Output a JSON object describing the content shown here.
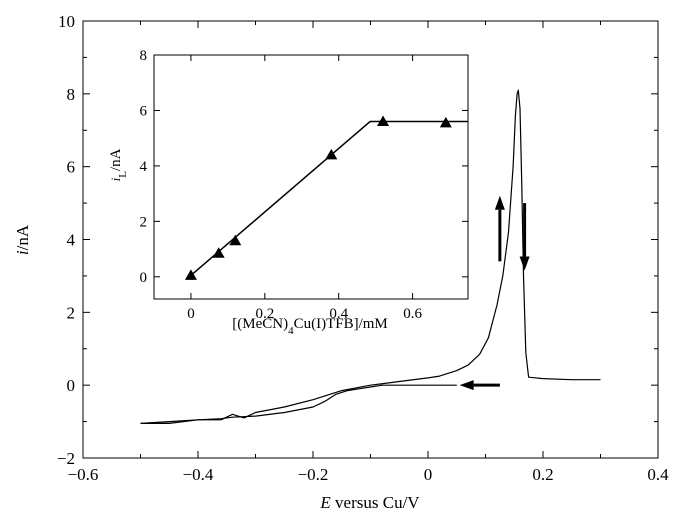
{
  "chart_data": [
    {
      "type": "line",
      "title": "",
      "xlabel": {
        "italic": "E",
        "rest": " versus Cu/V"
      },
      "ylabel": {
        "italic": "i",
        "rest": "/nA"
      },
      "xlim": [
        -0.6,
        0.4
      ],
      "ylim": [
        -2,
        10
      ],
      "x_ticks": [
        -0.6,
        -0.4,
        -0.2,
        0,
        0.2,
        0.4
      ],
      "x_tick_labels": [
        "−0.6",
        "−0.4",
        "−0.2",
        "0",
        "0.2",
        "0.4"
      ],
      "y_ticks": [
        -2,
        0,
        2,
        4,
        6,
        8,
        10
      ],
      "y_tick_labels": [
        "−2",
        "0",
        "2",
        "4",
        "6",
        "8",
        "10"
      ],
      "grid": false,
      "series": [
        {
          "x": [
            0.3,
            0.25,
            0.2,
            0.175,
            0.17,
            0.166,
            0.163,
            0.16,
            0.157,
            0.155,
            0.152,
            0.148,
            0.14,
            0.13,
            0.12,
            0.105,
            0.09,
            0.07,
            0.05,
            0.02,
            0.0,
            -0.05,
            -0.1,
            -0.15,
            -0.2,
            -0.25,
            -0.3,
            -0.32,
            -0.34,
            -0.36,
            -0.4,
            -0.45,
            -0.5
          ],
          "y": [
            0.15,
            0.15,
            0.18,
            0.22,
            0.9,
            3.0,
            5.6,
            7.6,
            8.1,
            8.0,
            7.4,
            6.0,
            4.2,
            3.0,
            2.2,
            1.3,
            0.85,
            0.55,
            0.4,
            0.25,
            0.2,
            0.1,
            0.0,
            -0.15,
            -0.4,
            -0.6,
            -0.75,
            -0.9,
            -0.8,
            -0.95,
            -0.95,
            -1.05,
            -1.05
          ]
        },
        {
          "x": [
            -0.5,
            -0.45,
            -0.4,
            -0.36,
            -0.34,
            -0.3,
            -0.25,
            -0.2,
            -0.18,
            -0.16,
            -0.14,
            -0.12,
            -0.1,
            -0.08,
            -0.05,
            0.0,
            0.05
          ],
          "y": [
            -1.05,
            -1.0,
            -0.95,
            -0.92,
            -0.88,
            -0.85,
            -0.75,
            -0.6,
            -0.45,
            -0.25,
            -0.15,
            -0.1,
            -0.05,
            0.0,
            0.0,
            0.0,
            0.0
          ]
        }
      ],
      "arrows": [
        {
          "direction": "up",
          "x": 0.125,
          "y_from": 3.4,
          "y_to": 5.2
        },
        {
          "direction": "down",
          "x": 0.168,
          "y_from": 5.0,
          "y_to": 3.15
        },
        {
          "direction": "left",
          "y": 0.0,
          "x_from": 0.125,
          "x_to": 0.055
        }
      ]
    },
    {
      "type": "scatter",
      "xlabel": {
        "pre": "[(MeCN)",
        "sub": "4",
        "post": "Cu(I)TFB]/mM"
      },
      "ylabel": {
        "main": "i",
        "sub": "L",
        "rest": "/nA"
      },
      "xlim": [
        -0.1,
        0.75
      ],
      "ylim": [
        -0.8,
        8
      ],
      "x_ticks": [
        0,
        0.2,
        0.4,
        0.6
      ],
      "x_tick_labels": [
        "0",
        "0.2",
        "0.4",
        "0.6"
      ],
      "y_ticks": [
        0,
        2,
        4,
        6,
        8
      ],
      "y_tick_labels": [
        "0",
        "2",
        "4",
        "6",
        "8"
      ],
      "grid": false,
      "points": {
        "x": [
          0.0,
          0.075,
          0.12,
          0.38,
          0.52,
          0.69
        ],
        "y": [
          0.05,
          0.85,
          1.3,
          4.4,
          5.6,
          5.55
        ]
      },
      "fit_line": {
        "x": [
          0.0,
          0.485,
          0.75
        ],
        "y": [
          0.05,
          5.6,
          5.6
        ]
      }
    }
  ]
}
